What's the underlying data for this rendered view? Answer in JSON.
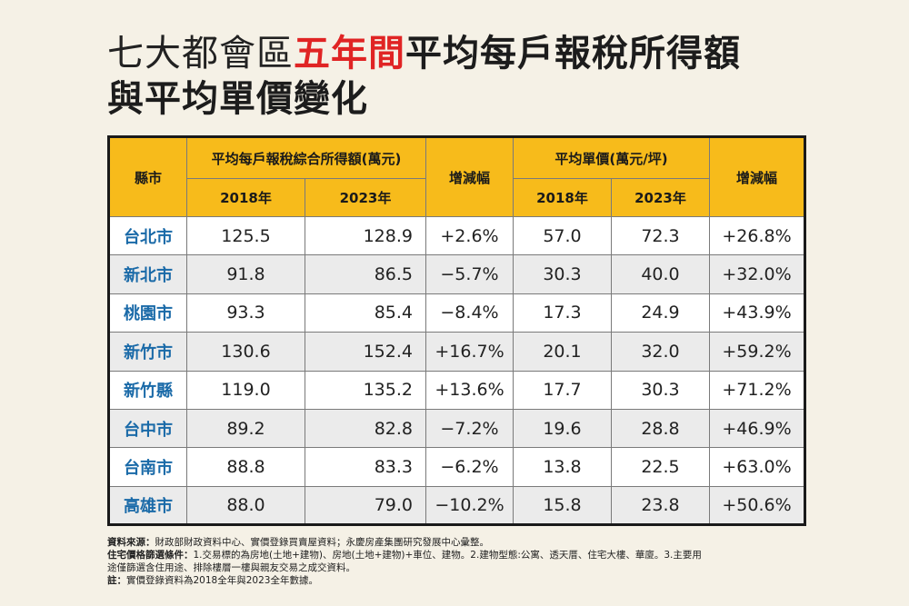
{
  "title": {
    "line1_part1": "七大都會區",
    "line1_part2": "五年間",
    "line1_part3": "平均每戶報稅所得額",
    "line2": "與平均單價變化"
  },
  "table": {
    "header_city": "縣市",
    "header_income": "平均每戶報稅綜合所得額(萬元)",
    "header_change1": "增減幅",
    "header_price": "平均單價(萬元/坪)",
    "header_change2": "增減幅",
    "year1": "2018年",
    "year2": "2023年",
    "year3": "2018年",
    "year4": "2023年",
    "rows": [
      {
        "city": "台北市",
        "inc2018": "125.5",
        "inc2023": "128.9",
        "inc_change": "+2.6%",
        "price2018": "57.0",
        "price2023": "72.3",
        "price_change": "+26.8%"
      },
      {
        "city": "新北市",
        "inc2018": "91.8",
        "inc2023": "86.5",
        "inc_change": "−5.7%",
        "price2018": "30.3",
        "price2023": "40.0",
        "price_change": "+32.0%"
      },
      {
        "city": "桃園市",
        "inc2018": "93.3",
        "inc2023": "85.4",
        "inc_change": "−8.4%",
        "price2018": "17.3",
        "price2023": "24.9",
        "price_change": "+43.9%"
      },
      {
        "city": "新竹市",
        "inc2018": "130.6",
        "inc2023": "152.4",
        "inc_change": "+16.7%",
        "price2018": "20.1",
        "price2023": "32.0",
        "price_change": "+59.2%"
      },
      {
        "city": "新竹縣",
        "inc2018": "119.0",
        "inc2023": "135.2",
        "inc_change": "+13.6%",
        "price2018": "17.7",
        "price2023": "30.3",
        "price_change": "+71.2%"
      },
      {
        "city": "台中市",
        "inc2018": "89.2",
        "inc2023": "82.8",
        "inc_change": "−7.2%",
        "price2018": "19.6",
        "price2023": "28.8",
        "price_change": "+46.9%"
      },
      {
        "city": "台南市",
        "inc2018": "88.8",
        "inc2023": "83.3",
        "inc_change": "−6.2%",
        "price2018": "13.8",
        "price2023": "22.5",
        "price_change": "+63.0%"
      },
      {
        "city": "高雄市",
        "inc2018": "88.0",
        "inc2023": "79.0",
        "inc_change": "−10.2%",
        "price2018": "15.8",
        "price2023": "23.8",
        "price_change": "+50.6%"
      }
    ]
  },
  "notes": {
    "source_label": "資料來源：",
    "source_text": "財政部財政資料中心、實價登錄買賣屋資料；永慶房產集團研究發展中心彙整。",
    "filter_label": "住宅價格篩選條件：",
    "filter_text": "1.交易標的為房地(土地+建物)、房地(土地+建物)+車位、建物。2.建物型態:公寓、透天厝、住宅大樓、華廈。3.主要用",
    "filter_text2": "途僅篩選含住用途、排除樓層一樓與親友交易之成交資料。",
    "note_label": "註：",
    "note_text": "實價登錄資料為2018全年與2023全年數據。"
  },
  "colors": {
    "background": "#f5f1e6",
    "header_bg": "#f7bb1b",
    "accent_red": "#e02424",
    "city_blue": "#1a6aa8"
  }
}
